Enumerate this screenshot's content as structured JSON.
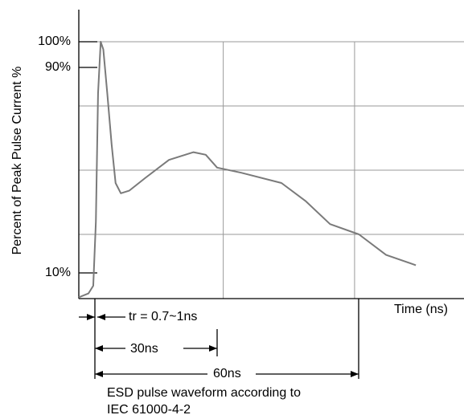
{
  "chart_data": {
    "type": "line",
    "y_label": "Percent of Peak Pulse Current %",
    "x_label": "Time (ns)",
    "caption": [
      "ESD pulse waveform according to",
      "IEC 61000-4-2"
    ],
    "annotations": [
      "tr = 0.7~1ns",
      "30ns",
      "60ns"
    ],
    "xlim": [
      -3,
      85
    ],
    "ylim": [
      0,
      100
    ],
    "yticks": [
      {
        "value": 100,
        "label": "100%"
      },
      {
        "value": 90,
        "label": "90%"
      },
      {
        "value": 10,
        "label": "10%"
      }
    ],
    "ygrid": [
      25,
      50,
      75,
      100
    ],
    "xgrid": [
      30,
      60
    ],
    "grid": true,
    "series": [
      {
        "color": "#7a7a7a",
        "x": [
          -3,
          -0.8,
          0.3,
          0.9,
          1.4,
          2.0,
          2.6,
          3.5,
          4.5,
          5.4,
          6.6,
          8.5,
          12.2,
          17.6,
          23.2,
          26,
          28.6,
          34.1,
          43.3,
          48.8,
          54.4,
          61,
          67.2,
          74
        ],
        "values": [
          0.5,
          2,
          5,
          30,
          80,
          100,
          97,
          80,
          60,
          45,
          41,
          42,
          47,
          54,
          57,
          56,
          51,
          49,
          45,
          38,
          29,
          25,
          17,
          13
        ]
      }
    ]
  }
}
